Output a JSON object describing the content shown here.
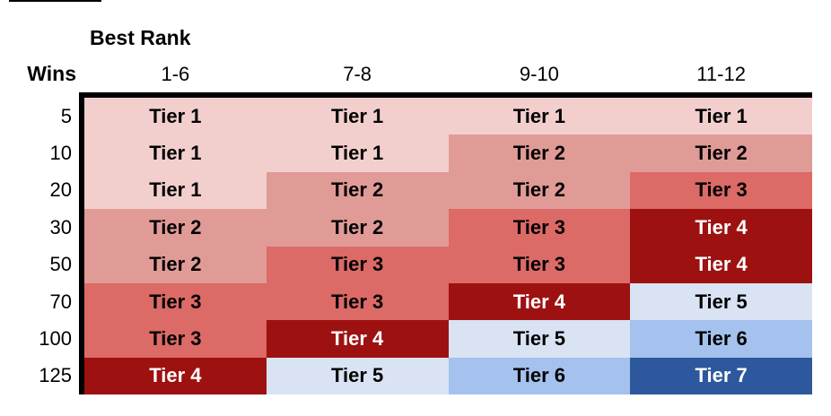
{
  "chart_data": {
    "type": "heatmap",
    "col_group_label": "Best Rank",
    "row_group_label": "Wins",
    "columns": [
      "1-6",
      "7-8",
      "9-10",
      "11-12"
    ],
    "rows": [
      "5",
      "10",
      "20",
      "30",
      "50",
      "70",
      "100",
      "125"
    ],
    "matrix": [
      [
        1,
        1,
        1,
        1
      ],
      [
        1,
        1,
        2,
        2
      ],
      [
        1,
        2,
        2,
        3
      ],
      [
        2,
        2,
        3,
        4
      ],
      [
        2,
        3,
        3,
        4
      ],
      [
        3,
        3,
        4,
        5
      ],
      [
        3,
        4,
        5,
        6
      ],
      [
        4,
        5,
        6,
        7
      ]
    ],
    "tiers": {
      "1": {
        "label": "Tier 1",
        "bg": "#f2cfcd",
        "fg": "#000000"
      },
      "2": {
        "label": "Tier 2",
        "bg": "#e19b97",
        "fg": "#000000"
      },
      "3": {
        "label": "Tier 3",
        "bg": "#dc6a66",
        "fg": "#000000"
      },
      "4": {
        "label": "Tier 4",
        "bg": "#9e1111",
        "fg": "#ffffff"
      },
      "5": {
        "label": "Tier 5",
        "bg": "#d9e3f3",
        "fg": "#000000"
      },
      "6": {
        "label": "Tier 6",
        "bg": "#a5c2ee",
        "fg": "#000000"
      },
      "7": {
        "label": "Tier 7",
        "bg": "#2d589e",
        "fg": "#ffffff"
      }
    },
    "border_color": "#000000",
    "layout": {
      "grid": "off",
      "borders": "thick black top and left only"
    }
  }
}
